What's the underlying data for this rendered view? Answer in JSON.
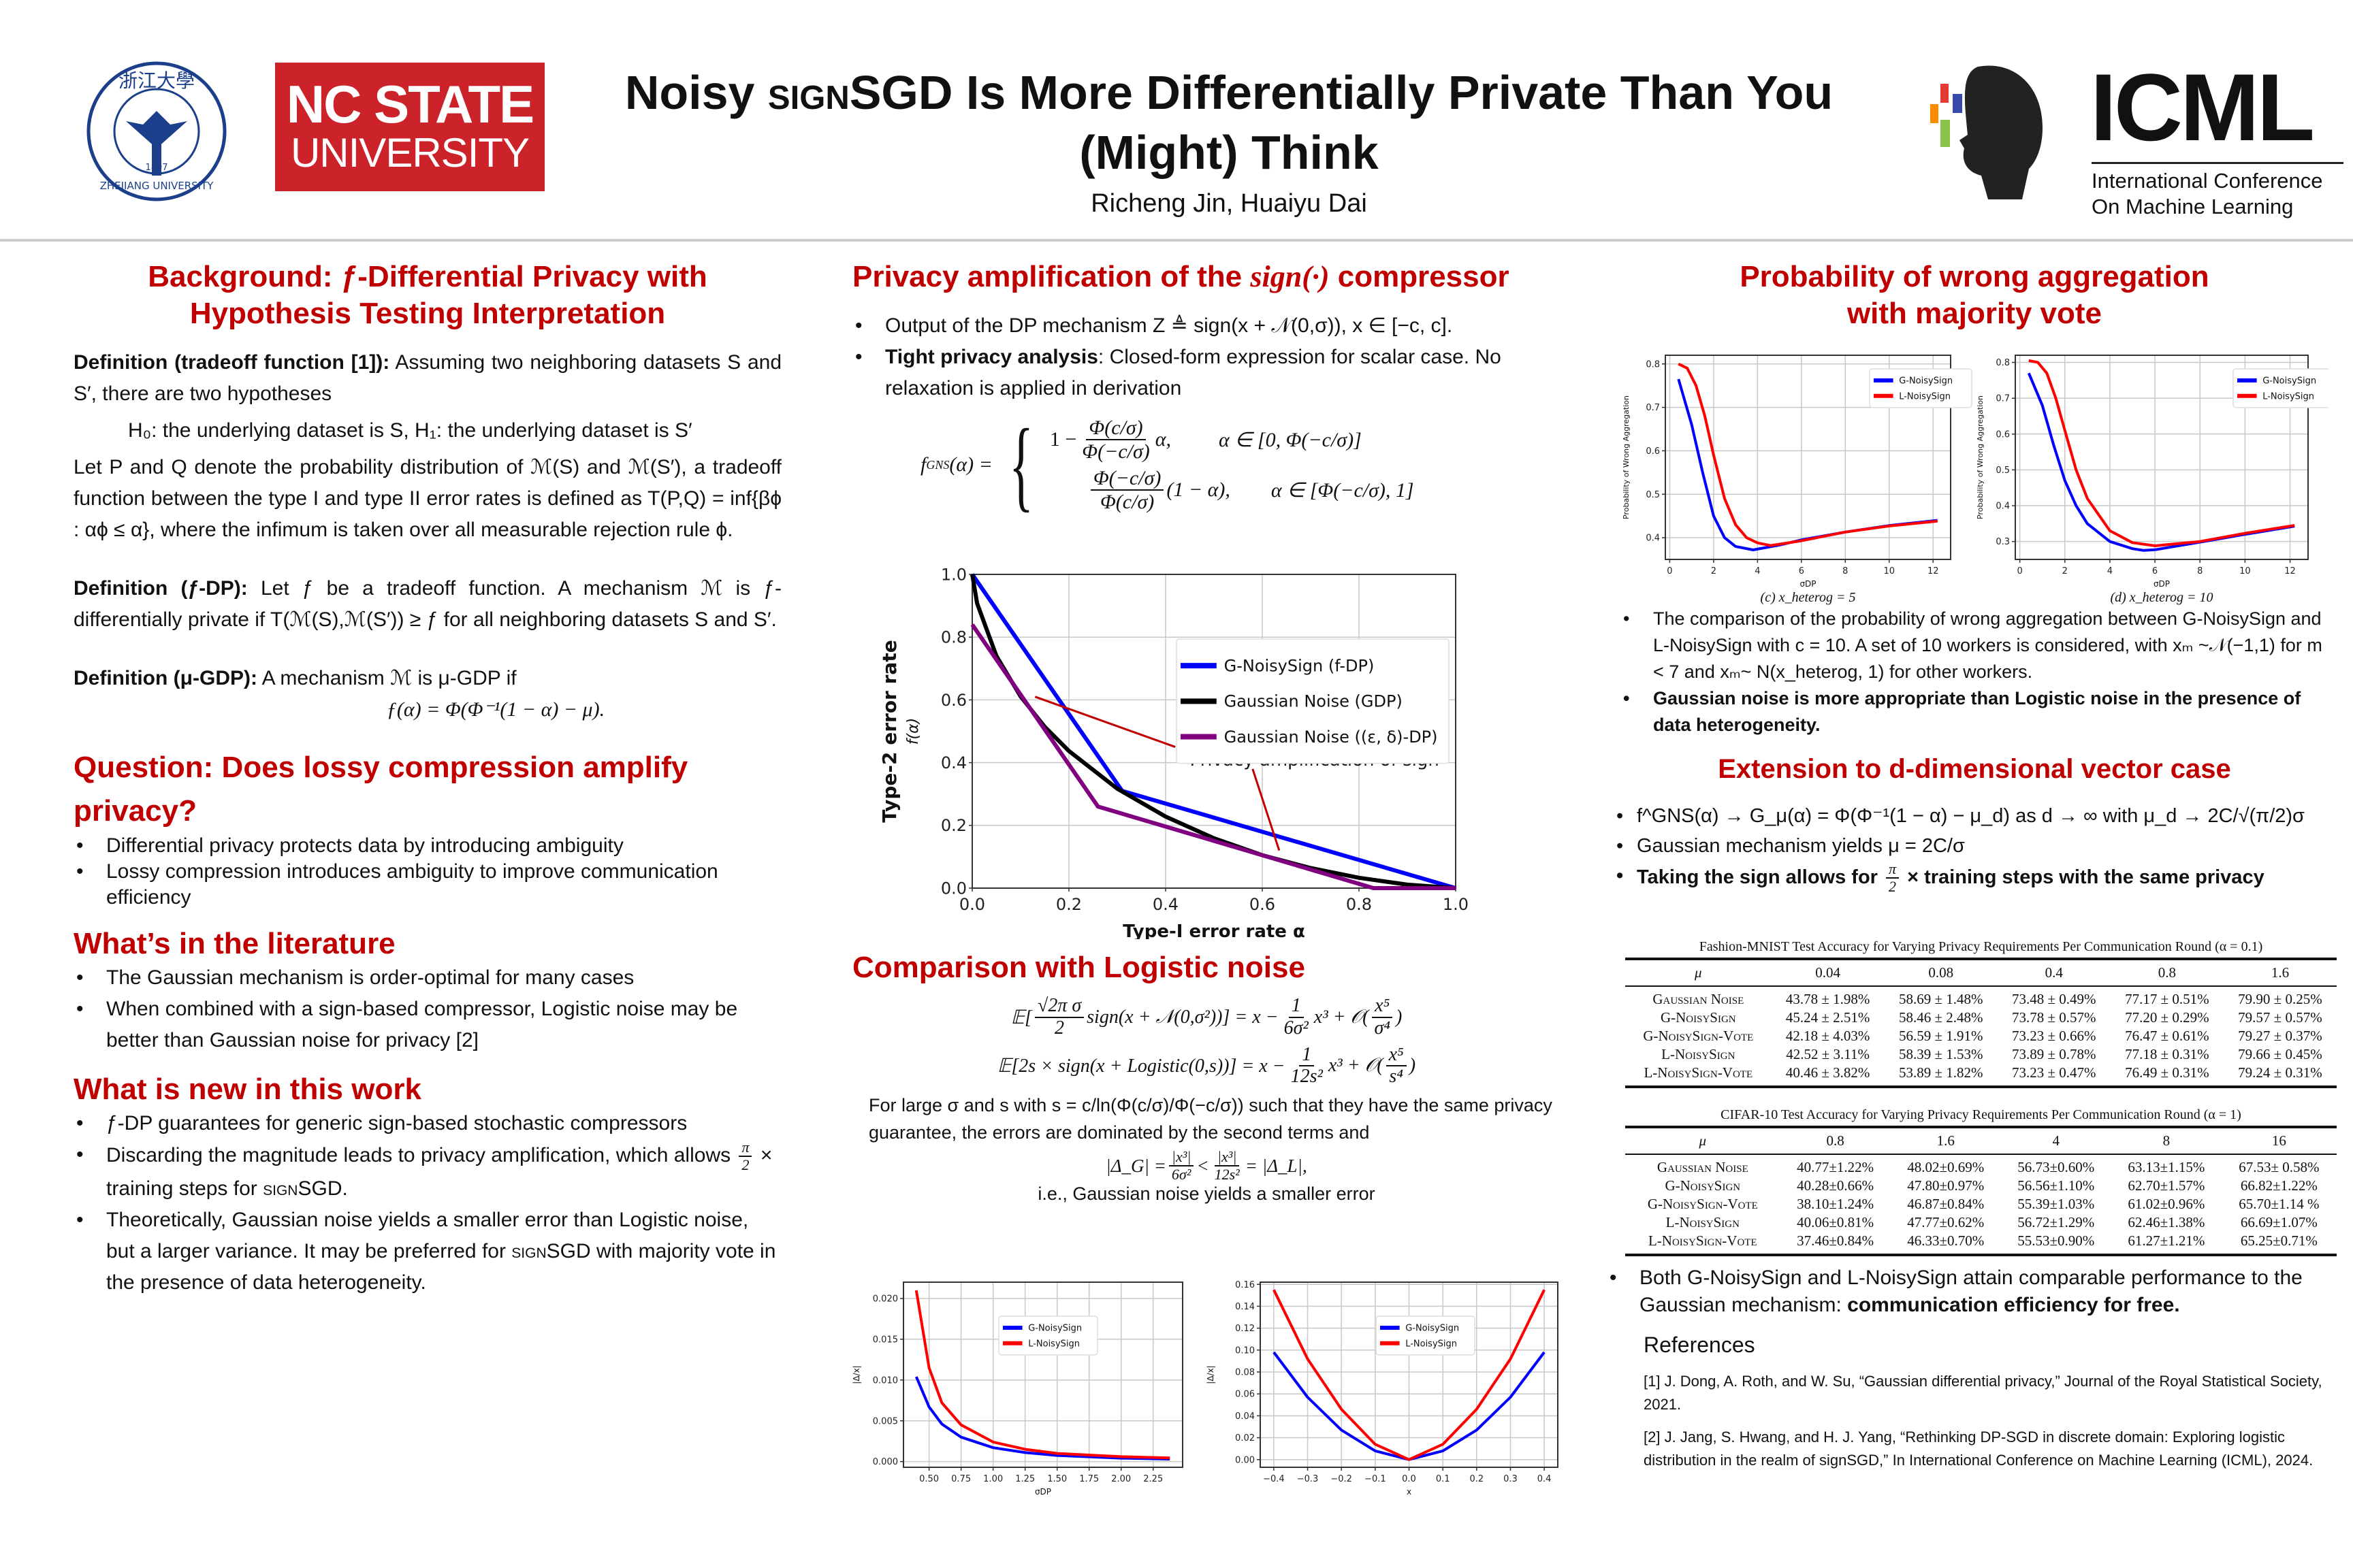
{
  "header": {
    "title_pre": "Noisy ",
    "title_sc": "sign",
    "title_post": "SGD Is More Differentially Private Than You",
    "title_line2": "(Might) Think",
    "authors": "Richeng Jin, Huaiyu Dai",
    "logos": {
      "zju": {
        "chinese": "浙江大學",
        "english": "ZHEJIANG UNIVERSITY",
        "year": "1897",
        "color": "#1b3f8b"
      },
      "ncsu": {
        "line1": "NC STATE",
        "line2": "UNIVERSITY",
        "color": "#cc2229"
      },
      "icml": {
        "name": "ICML",
        "line1": "International Conference",
        "line2": "On Machine Learning"
      }
    }
  },
  "colors": {
    "heading": "#c00000",
    "g_series": "#0000ff",
    "l_series": "#ff0000",
    "gdp": "#000000",
    "eps_delta": "#800080",
    "annotation": "#c00000"
  },
  "left": {
    "background": {
      "title_line1": "Background: ƒ-Differential Privacy with",
      "title_line2": "Hypothesis Testing Interpretation",
      "def1_label": "Definition (tradeoff function [1]):",
      "def1_text": " Assuming two neighboring datasets S and S′, there are two hypotheses",
      "hypotheses": "H₀: the underlying dataset is S, H₁: the underlying dataset is S′",
      "tradeoff_text": "Let P and Q denote the probability distribution of ℳ(S) and ℳ(S′), a tradeoff function between the type I and type II error rates is defined as T(P,Q) = inf{βϕ : αϕ ≤ α}, where the infimum is taken over all measurable rejection rule ϕ.",
      "def2_label": "Definition (ƒ-DP):",
      "def2_text": " Let ƒ be a tradeoff function. A mechanism ℳ is ƒ-differentially private if T(ℳ(S),ℳ(S′)) ≥ ƒ for all neighboring datasets S and S′.",
      "def3_label": "Definition (μ-GDP):",
      "def3_text": " A mechanism ℳ is μ-GDP if",
      "def3_formula": "ƒ(α) = Φ(Φ⁻¹(1 − α) − μ)."
    },
    "question": {
      "title": "Question: Does lossy compression amplify privacy?",
      "bullets": [
        "Differential privacy protects data by introducing ambiguity",
        "Lossy compression introduces ambiguity to improve communication efficiency"
      ]
    },
    "literature": {
      "title": "What’s in the literature",
      "bullets": [
        "The Gaussian mechanism is order-optimal for many cases",
        "When combined with a sign-based compressor, Logistic noise may be better than Gaussian noise for privacy [2]"
      ]
    },
    "new_work": {
      "title": "What is new in this work",
      "bullet1": "ƒ-DP guarantees for generic sign-based stochastic compressors",
      "bullet2_pre": "Discarding the magnitude leads to privacy amplification, which allows ",
      "pi": "π",
      "two": "2",
      "bullet2_post": " × training steps for ",
      "sign_sc": "sign",
      "sgd": "SGD.",
      "bullet3_pre": "Theoretically, Gaussian noise yields a smaller error than Logistic noise, but a larger variance. It may be preferred for ",
      "bullet3_sgd": "SGD with majority vote in the presence of data heterogeneity."
    }
  },
  "middle": {
    "amp": {
      "title_pre": "Privacy amplification of the ",
      "title_math": "sign(·)",
      "title_post": " compressor",
      "bullet1": "Output of the DP mechanism Z ≜ sign(x + 𝒩(0,σ)), x ∈ [−c, c].",
      "bullet2_bold": "Tight privacy analysis",
      "bullet2_text": ": Closed-form expression for scalar case. No relaxation is applied in derivation",
      "formula": {
        "lhs": "f",
        "lhs_sup": "GNS",
        "lhs_arg": "(α) =",
        "case1_one": "1 −",
        "case1_num": "Φ(c/σ)",
        "case1_den": "Φ(−c/σ)",
        "case1_tail": "α,",
        "case1_cond": "α ∈ [0, Φ(−c/σ)]",
        "case2_num": "Φ(−c/σ)",
        "case2_den": "Φ(c/σ)",
        "case2_tail": "(1 − α),",
        "case2_cond": "α ∈ [Φ(−c/σ), 1]"
      }
    },
    "logistic": {
      "title": "Comparison with Logistic noise",
      "eq1": {
        "E": "𝔼[",
        "num": "√2π σ",
        "den": "2",
        "mid": "sign(x + 𝒩(0,σ²))] = x −",
        "f_num": "1",
        "f_den": "6σ²",
        "tail": "x³ + 𝒪(",
        "o_num": "x⁵",
        "o_den": "σ⁴",
        "close": ")"
      },
      "eq2": {
        "lhs": "𝔼[2s × sign(x + Logistic(0,s))] = x −",
        "f_num": "1",
        "f_den": "12s²",
        "tail": "x³ + 𝒪(",
        "o_num": "x⁵",
        "o_den": "s⁴",
        "close": ")"
      },
      "para": "For large σ and s with s = c/ln(Φ(c/σ)/Φ(−c/σ)) such that they have the same privacy guarantee, the errors are dominated by the second terms and",
      "eq3": {
        "lhs": "|Δ_G| =",
        "n1": "|x³|",
        "d1": "6σ²",
        "lt": "<",
        "n2": "|x³|",
        "d2": "12s²",
        "rhs": "= |Δ_L|,"
      },
      "conclusion": "i.e., Gaussian noise yields a smaller error"
    }
  },
  "right": {
    "agg": {
      "title_line1": "Probability of wrong aggregation",
      "title_line2": "with majority vote",
      "bullet1": "The comparison of the probability of wrong aggregation between G-NoisySign and L-NoisySign with c = 10. A set of 10 workers is considered, with xₘ ~𝒩(−1,1) for m < 7 and xₘ~ N(x_heterog, 1) for other workers.",
      "bullet2": "Gaussian noise is more appropriate than Logistic noise in the presence of data heterogeneity."
    },
    "ext": {
      "title": "Extension to d-dimensional vector case",
      "bullet1": "f^GNS(α) → G_μ(α) = Φ(Φ⁻¹(1 − α) − μ_d) as d → ∞ with μ_d → 2C/√(π/2)σ",
      "bullet2": "Gaussian mechanism yields μ = 2C/σ",
      "bullet3_pre": "Taking the sign allows for ",
      "pi": "π",
      "two": "2",
      "bullet3_post": " × training steps with the same privacy"
    },
    "tables": [
      {
        "caption": "Fashion-MNIST Test Accuracy for Varying Privacy Requirements Per Communication Round (α = 0.1)",
        "header": [
          "μ",
          "0.04",
          "0.08",
          "0.4",
          "0.8",
          "1.6"
        ],
        "rows": [
          [
            "Gaussian Noise",
            "43.78 ± 1.98%",
            "58.69 ± 1.48%",
            "73.48 ± 0.49%",
            "77.17 ± 0.51%",
            "79.90 ± 0.25%"
          ],
          [
            "G-NoisySign",
            "45.24 ± 2.51%",
            "58.46 ± 2.48%",
            "73.78 ± 0.57%",
            "77.20 ± 0.29%",
            "79.57 ± 0.57%"
          ],
          [
            "G-NoisySign-Vote",
            "42.18 ± 4.03%",
            "56.59 ± 1.91%",
            "73.23 ± 0.66%",
            "76.47 ± 0.61%",
            "79.27 ± 0.37%"
          ],
          [
            "L-NoisySign",
            "42.52 ± 3.11%",
            "58.39 ± 1.53%",
            "73.89 ± 0.78%",
            "77.18 ± 0.31%",
            "79.66 ± 0.45%"
          ],
          [
            "L-NoisySign-Vote",
            "40.46 ± 3.82%",
            "53.89 ± 1.82%",
            "73.23 ± 0.47%",
            "76.49 ± 0.31%",
            "79.24 ± 0.31%"
          ]
        ]
      },
      {
        "caption": "CIFAR-10 Test Accuracy for Varying Privacy Requirements Per Communication Round (α = 1)",
        "header": [
          "μ",
          "0.8",
          "1.6",
          "4",
          "8",
          "16"
        ],
        "rows": [
          [
            "Gaussian Noise",
            "40.77±1.22%",
            "48.02±0.69%",
            "56.73±0.60%",
            "63.13±1.15%",
            "67.53± 0.58%"
          ],
          [
            "G-NoisySign",
            "40.28±0.66%",
            "47.80±0.97%",
            "56.56±1.10%",
            "62.70±1.57%",
            "66.82±1.22%"
          ],
          [
            "G-NoisySign-Vote",
            "38.10±1.24%",
            "46.87±0.84%",
            "55.39±1.03%",
            "61.02±0.96%",
            "65.70±1.14 %"
          ],
          [
            "L-NoisySign",
            "40.06±0.81%",
            "47.77±0.62%",
            "56.72±1.29%",
            "62.46±1.38%",
            "66.69±1.07%"
          ],
          [
            "L-NoisySign-Vote",
            "37.46±0.84%",
            "46.33±0.70%",
            "55.53±0.90%",
            "61.27±1.21%",
            "65.25±0.71%"
          ]
        ]
      }
    ],
    "summary_pre": "Both G-NoisySign and L-NoisySign attain comparable performance to the Gaussian mechanism: ",
    "summary_bold": "communication efficiency for free.",
    "references": {
      "title": "References",
      "items": [
        "[1] J. Dong, A. Roth, and W. Su, “Gaussian differential privacy,” Journal of the Royal Statistical Society, 2021.",
        "[2] J. Jang, S. Hwang, and H. J. Yang, “Rethinking DP-SGD in discrete domain: Exploring logistic distribution in the realm of signSGD,” In International Conference on Machine Learning (ICML), 2024."
      ]
    }
  },
  "chart_data": [
    {
      "type": "line",
      "xlabel": "Type-I error rate α",
      "ylabel": "Type-2 error rate",
      "ylabel2": "f(α)",
      "xlim": [
        0,
        1
      ],
      "ylim": [
        0,
        1
      ],
      "xticks": [
        0,
        0.2,
        0.4,
        0.6,
        0.8,
        1.0
      ],
      "xtick_labels": [
        "0.0",
        "0.2",
        "0.4",
        "0.6",
        "0.8",
        "1.0"
      ],
      "yticks": [
        0,
        0.2,
        0.4,
        0.6,
        0.8,
        1.0
      ],
      "ytick_labels": [
        "0.0",
        "0.2",
        "0.4",
        "0.6",
        "0.8",
        "1.0"
      ],
      "grid": true,
      "legend": "upper-right",
      "series": [
        {
          "name": "G-NoisySign (f-DP)",
          "color": "#0000ff",
          "x": [
            0,
            0.31,
            1.0
          ],
          "y": [
            1.0,
            0.31,
            0.0
          ]
        },
        {
          "name": "Gaussian Noise (GDP)",
          "color": "#000000",
          "x": [
            0,
            0.01,
            0.05,
            0.1,
            0.15,
            0.2,
            0.3,
            0.4,
            0.5,
            0.6,
            0.7,
            0.8,
            0.9,
            1.0
          ],
          "y": [
            1.0,
            0.908,
            0.74,
            0.611,
            0.514,
            0.437,
            0.317,
            0.228,
            0.159,
            0.105,
            0.064,
            0.033,
            0.011,
            0.0
          ]
        },
        {
          "name": "Gaussian Noise ((ε, δ)-DP)",
          "color": "#800080",
          "x": [
            0,
            0.26,
            0.83,
            1.0
          ],
          "y": [
            0.84,
            0.26,
            0.0,
            0.0
          ]
        }
      ],
      "annotation": {
        "text": "Privacy amplification of sign",
        "lines": [
          [
            [
              0.13,
              0.61
            ],
            [
              0.42,
              0.45
            ]
          ],
          [
            [
              0.58,
              0.38
            ],
            [
              0.635,
              0.12
            ]
          ]
        ]
      }
    },
    {
      "type": "line",
      "caption": "(c) x_heterog = 5",
      "xlabel": "σDP",
      "ylabel": "Probability of Wrong Aggregation",
      "xlim": [
        -0.2,
        12.8
      ],
      "ylim": [
        0.35,
        0.82
      ],
      "xticks": [
        0,
        2,
        4,
        6,
        8,
        10,
        12
      ],
      "xtick_labels": [
        "0",
        "2",
        "4",
        "6",
        "8",
        "10",
        "12"
      ],
      "yticks": [
        0.4,
        0.5,
        0.6,
        0.7,
        0.8
      ],
      "ytick_labels": [
        "0.4",
        "0.5",
        "0.6",
        "0.7",
        "0.8"
      ],
      "grid": true,
      "legend": "upper-right",
      "series": [
        {
          "name": "G-NoisySign",
          "color": "#0000ff",
          "x": [
            0.4,
            1,
            1.5,
            2,
            2.5,
            3,
            3.8,
            5,
            6,
            8,
            10,
            12.2
          ],
          "y": [
            0.765,
            0.66,
            0.55,
            0.45,
            0.4,
            0.38,
            0.372,
            0.383,
            0.395,
            0.413,
            0.428,
            0.44
          ]
        },
        {
          "name": "L-NoisySign",
          "color": "#ff0000",
          "x": [
            0.4,
            0.8,
            1.2,
            1.6,
            2,
            2.5,
            3,
            3.5,
            4,
            4.6,
            6,
            8,
            10,
            12.2
          ],
          "y": [
            0.8,
            0.79,
            0.75,
            0.68,
            0.59,
            0.49,
            0.43,
            0.4,
            0.388,
            0.382,
            0.393,
            0.413,
            0.427,
            0.438
          ]
        }
      ]
    },
    {
      "type": "line",
      "caption": "(d) x_heterog = 10",
      "xlabel": "σDP",
      "ylabel": "Probability of Wrong Aggregation",
      "xlim": [
        -0.2,
        12.8
      ],
      "ylim": [
        0.25,
        0.82
      ],
      "xticks": [
        0,
        2,
        4,
        6,
        8,
        10,
        12
      ],
      "xtick_labels": [
        "0",
        "2",
        "4",
        "6",
        "8",
        "10",
        "12"
      ],
      "yticks": [
        0.3,
        0.4,
        0.5,
        0.6,
        0.7,
        0.8
      ],
      "ytick_labels": [
        "0.3",
        "0.4",
        "0.5",
        "0.6",
        "0.7",
        "0.8"
      ],
      "grid": true,
      "legend": "upper-right",
      "series": [
        {
          "name": "G-NoisySign",
          "color": "#0000ff",
          "x": [
            0.4,
            1,
            1.5,
            2,
            2.5,
            3,
            4,
            5,
            5.5,
            6,
            8,
            10,
            12.2
          ],
          "y": [
            0.77,
            0.68,
            0.57,
            0.47,
            0.4,
            0.35,
            0.3,
            0.28,
            0.275,
            0.277,
            0.298,
            0.32,
            0.343
          ]
        },
        {
          "name": "L-NoisySign",
          "color": "#ff0000",
          "x": [
            0.4,
            0.8,
            1.2,
            1.6,
            2,
            2.5,
            3,
            4,
            5,
            6,
            8,
            10,
            12.2
          ],
          "y": [
            0.805,
            0.8,
            0.77,
            0.7,
            0.61,
            0.5,
            0.42,
            0.33,
            0.297,
            0.288,
            0.3,
            0.323,
            0.345
          ]
        }
      ]
    },
    {
      "type": "line",
      "xlabel": "σDP",
      "ylabel": "|Δ/x|",
      "xlim": [
        0.3,
        2.48
      ],
      "ylim": [
        -0.0007,
        0.022
      ],
      "xticks": [
        0.5,
        0.75,
        1.0,
        1.25,
        1.5,
        1.75,
        2.0,
        2.25
      ],
      "xtick_labels": [
        "0.50",
        "0.75",
        "1.00",
        "1.25",
        "1.50",
        "1.75",
        "2.00",
        "2.25"
      ],
      "yticks": [
        0,
        0.005,
        0.01,
        0.015,
        0.02
      ],
      "ytick_labels": [
        "0.000",
        "0.005",
        "0.010",
        "0.015",
        "0.020"
      ],
      "grid": true,
      "legend": "center",
      "series": [
        {
          "name": "G-NoisySign",
          "color": "#0000ff",
          "x": [
            0.4,
            0.5,
            0.6,
            0.75,
            1.0,
            1.25,
            1.5,
            2.0,
            2.38
          ],
          "y": [
            0.0104,
            0.0067,
            0.0046,
            0.003,
            0.0017,
            0.0011,
            0.00075,
            0.00042,
            0.0003
          ]
        },
        {
          "name": "L-NoisySign",
          "color": "#ff0000",
          "x": [
            0.4,
            0.5,
            0.6,
            0.75,
            1.0,
            1.25,
            1.5,
            2.0,
            2.38
          ],
          "y": [
            0.021,
            0.0115,
            0.0072,
            0.0045,
            0.0024,
            0.0015,
            0.001,
            0.0006,
            0.00045
          ]
        }
      ]
    },
    {
      "type": "line",
      "xlabel": "x",
      "ylabel": "|Δ/x|",
      "xlim": [
        -0.44,
        0.44
      ],
      "ylim": [
        -0.007,
        0.162
      ],
      "xticks": [
        -0.4,
        -0.3,
        -0.2,
        -0.1,
        0,
        0.1,
        0.2,
        0.3,
        0.4
      ],
      "xtick_labels": [
        "−0.4",
        "−0.3",
        "−0.2",
        "−0.1",
        "0.0",
        "0.1",
        "0.2",
        "0.3",
        "0.4"
      ],
      "yticks": [
        0,
        0.02,
        0.04,
        0.06,
        0.08,
        0.1,
        0.12,
        0.14,
        0.16
      ],
      "ytick_labels": [
        "0.00",
        "0.02",
        "0.04",
        "0.06",
        "0.08",
        "0.10",
        "0.12",
        "0.14",
        "0.16"
      ],
      "grid": true,
      "legend": "center",
      "series": [
        {
          "name": "G-NoisySign",
          "color": "#0000ff",
          "x": [
            -0.4,
            -0.3,
            -0.2,
            -0.1,
            0,
            0.1,
            0.2,
            0.3,
            0.4
          ],
          "y": [
            0.098,
            0.057,
            0.027,
            0.008,
            0,
            0.008,
            0.027,
            0.057,
            0.098
          ]
        },
        {
          "name": "L-NoisySign",
          "color": "#ff0000",
          "x": [
            -0.4,
            -0.3,
            -0.2,
            -0.1,
            0,
            0.1,
            0.2,
            0.3,
            0.4
          ],
          "y": [
            0.155,
            0.092,
            0.046,
            0.014,
            0,
            0.014,
            0.046,
            0.092,
            0.155
          ]
        }
      ]
    }
  ]
}
